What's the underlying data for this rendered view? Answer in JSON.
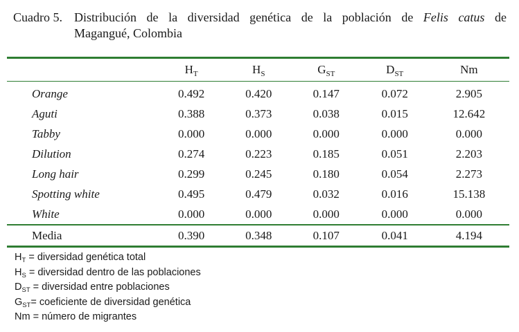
{
  "caption": {
    "number": "Cuadro 5.",
    "text_before": "Distribución de la diversidad genética de la población de",
    "species": "Felis catus",
    "text_after": "de",
    "line2": "Magangué, Colombia"
  },
  "table": {
    "headers": [
      {
        "base": "H",
        "sub": "T"
      },
      {
        "base": "H",
        "sub": "S"
      },
      {
        "base": "G",
        "sub": "ST"
      },
      {
        "base": "D",
        "sub": "ST"
      },
      {
        "base": "Nm",
        "sub": ""
      }
    ],
    "rows": [
      {
        "name": "Orange",
        "ht": "0.492",
        "hs": "0.420",
        "gst": "0.147",
        "dst": "0.072",
        "nm": "2.905"
      },
      {
        "name": "Aguti",
        "ht": "0.388",
        "hs": "0.373",
        "gst": "0.038",
        "dst": "0.015",
        "nm": "12.642"
      },
      {
        "name": "Tabby",
        "ht": "0.000",
        "hs": "0.000",
        "gst": "0.000",
        "dst": "0.000",
        "nm": "0.000"
      },
      {
        "name": "Dilution",
        "ht": "0.274",
        "hs": "0.223",
        "gst": "0.185",
        "dst": "0.051",
        "nm": "2.203"
      },
      {
        "name": "Long hair",
        "ht": "0.299",
        "hs": "0.245",
        "gst": "0.180",
        "dst": "0.054",
        "nm": "2.273"
      },
      {
        "name": "Spotting white",
        "ht": "0.495",
        "hs": "0.479",
        "gst": "0.032",
        "dst": "0.016",
        "nm": "15.138"
      },
      {
        "name": "White",
        "ht": "0.000",
        "hs": "0.000",
        "gst": "0.000",
        "dst": "0.000",
        "nm": "0.000"
      }
    ],
    "total": {
      "name": "Media",
      "ht": "0.390",
      "hs": "0.348",
      "gst": "0.107",
      "dst": "0.041",
      "nm": "4.194"
    }
  },
  "notes": [
    {
      "base": "H",
      "sub": "T",
      "text": " = diversidad genética total"
    },
    {
      "base": "H",
      "sub": "S",
      "text": " = diversidad dentro de las poblaciones"
    },
    {
      "base": "D",
      "sub": "ST",
      "text": " = diversidad entre poblaciones"
    },
    {
      "base": "G",
      "sub": "ST",
      "text": "= coeficiente de diversidad genética"
    },
    {
      "base": "Nm",
      "sub": "",
      "text": " = número de migrantes"
    }
  ],
  "colors": {
    "rule": "#2e7d32",
    "text": "#1a1a1a"
  }
}
